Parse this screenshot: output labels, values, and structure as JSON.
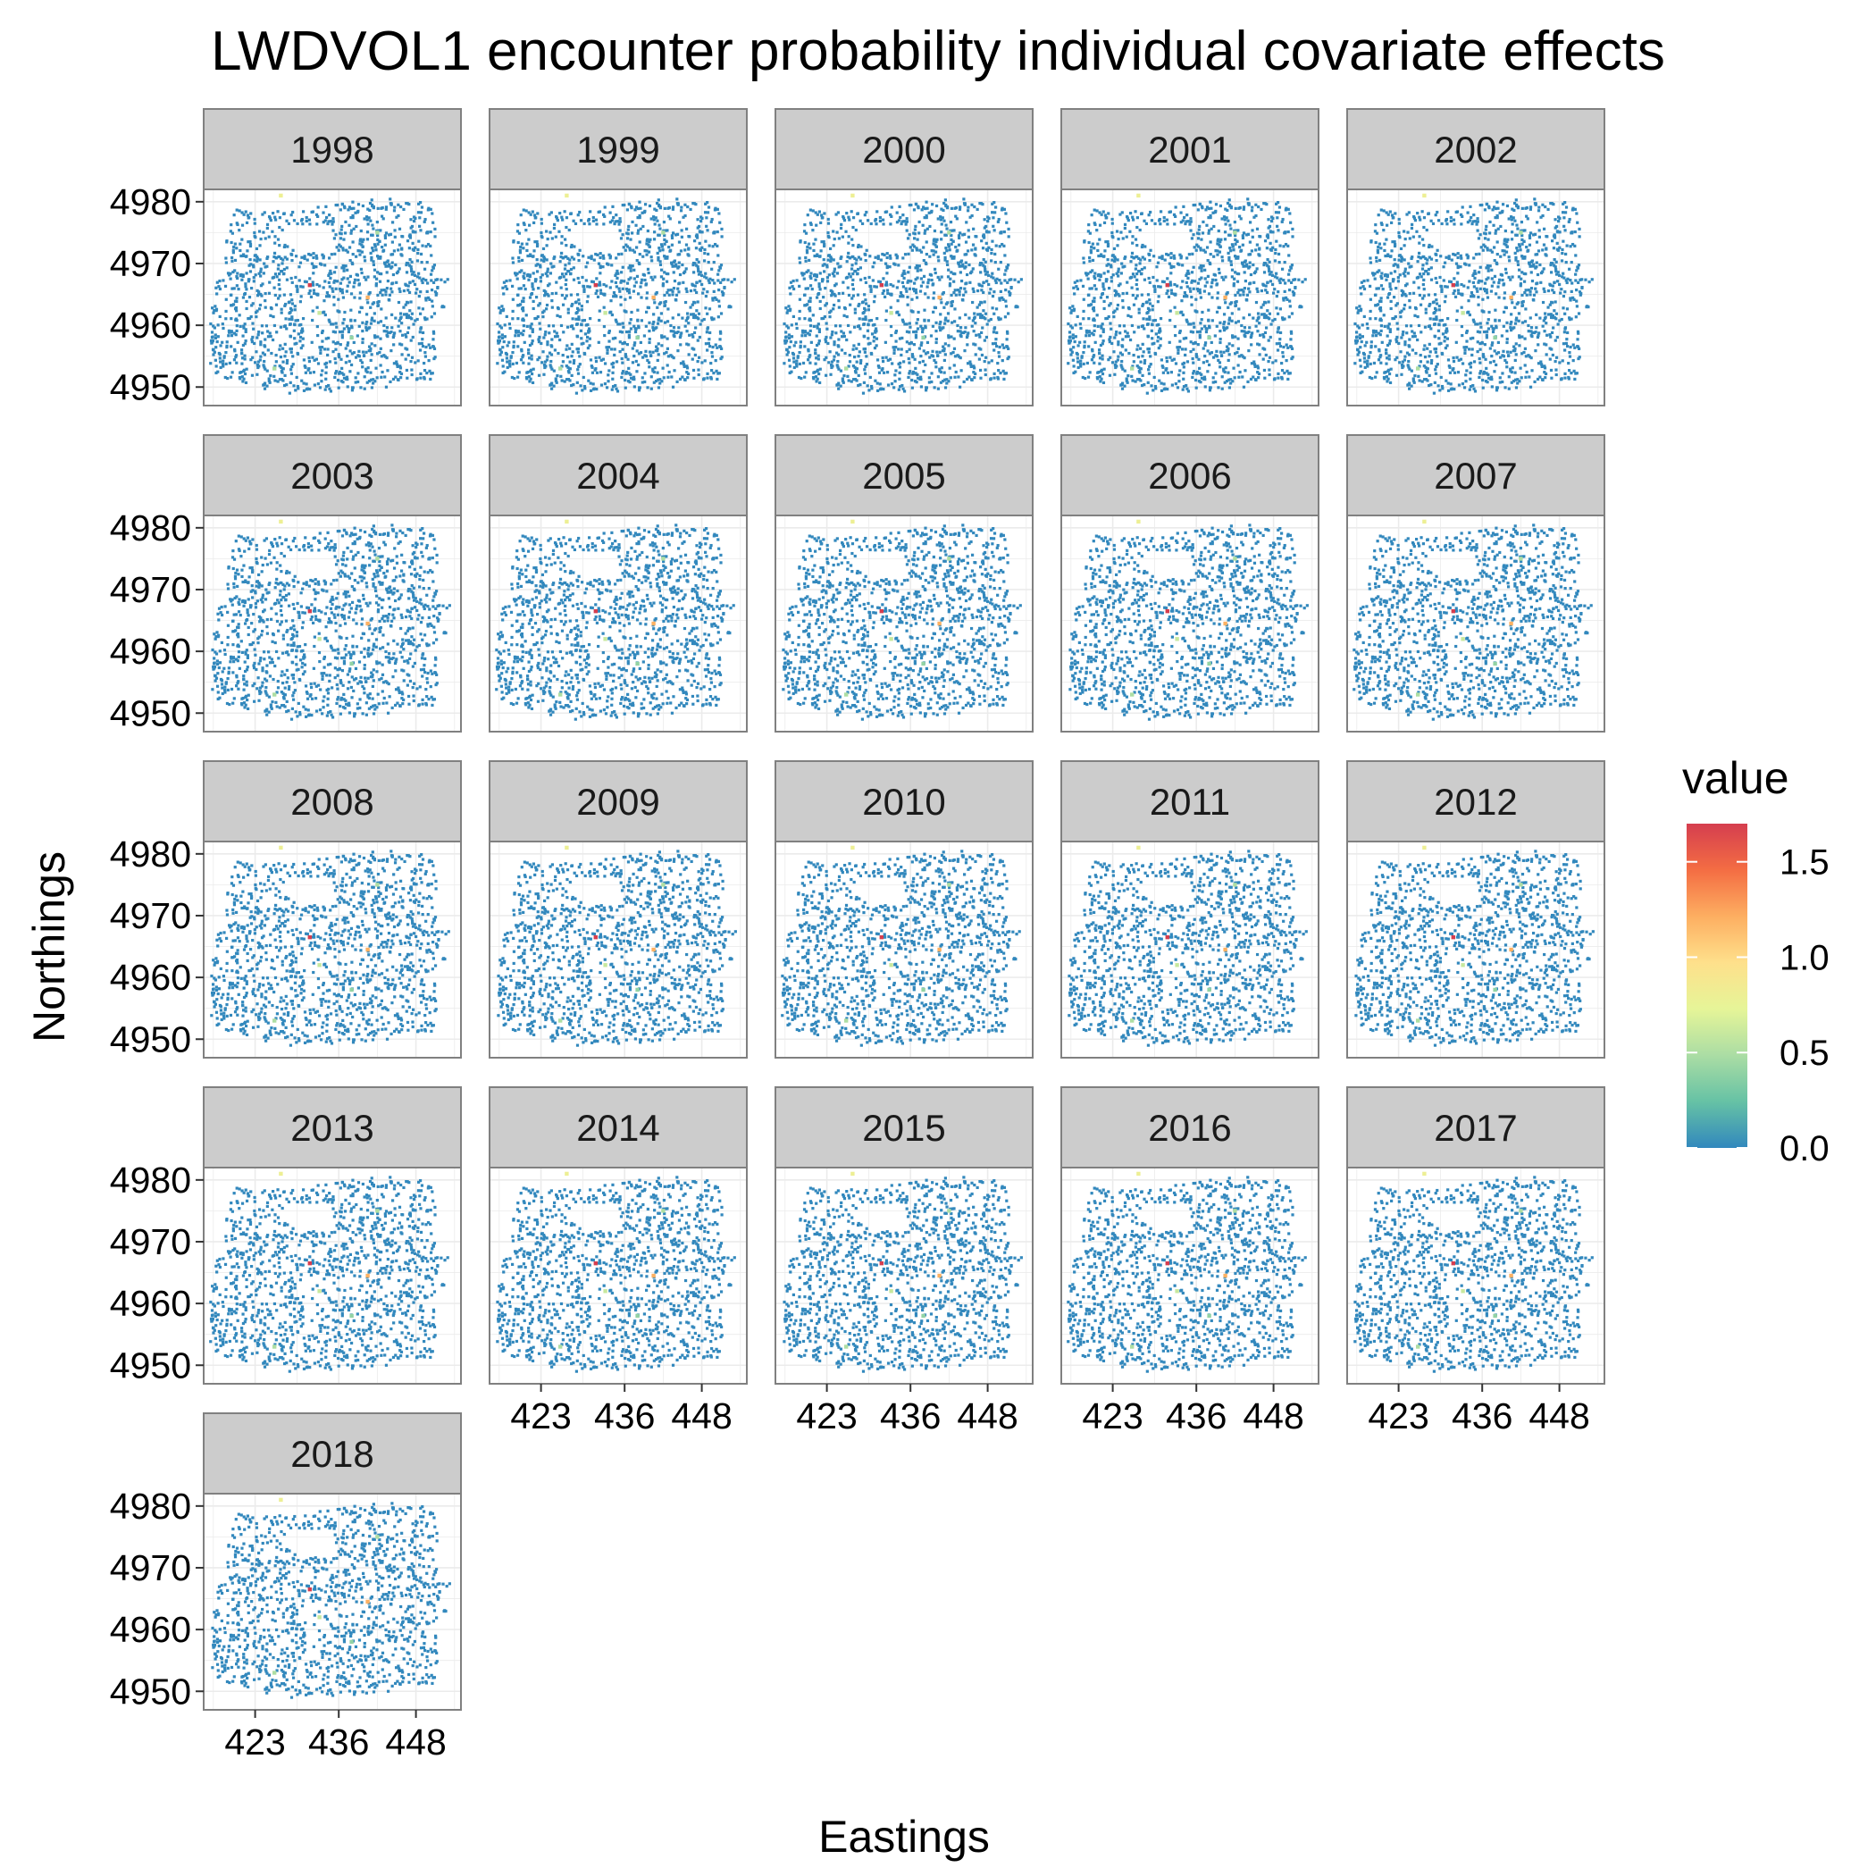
{
  "chart_data": {
    "type": "scatter",
    "title": "LWDVOL1 encounter probability individual covariate effects",
    "xlabel": "Eastings",
    "ylabel": "Northings",
    "facet_variable": "year",
    "panels": [
      "1998",
      "1999",
      "2000",
      "2001",
      "2002",
      "2003",
      "2004",
      "2005",
      "2006",
      "2007",
      "2008",
      "2009",
      "2010",
      "2011",
      "2012",
      "2013",
      "2014",
      "2015",
      "2016",
      "2017",
      "2018"
    ],
    "x_ticks": [
      423,
      436,
      448
    ],
    "y_ticks": [
      4950,
      4960,
      4970,
      4980
    ],
    "xlim": [
      415,
      455
    ],
    "ylim": [
      4947,
      4982
    ],
    "grid": true,
    "point_color_default": "#3288bd",
    "colorbar": {
      "title": "value",
      "ticks": [
        0.0,
        0.5,
        1.0,
        1.5
      ],
      "tick_labels": [
        "0.0",
        "0.5",
        "1.0",
        "1.5"
      ],
      "range": [
        0,
        1.7
      ],
      "palette": [
        "#3288bd",
        "#66c2a5",
        "#abdda4",
        "#e6f598",
        "#fee08b",
        "#fdae61",
        "#f46d43",
        "#d53e4f"
      ]
    },
    "highlight_points": [
      {
        "x": 431.5,
        "y": 4966.5,
        "value": 1.7
      },
      {
        "x": 440.5,
        "y": 4964.5,
        "value": 1.2
      },
      {
        "x": 433.0,
        "y": 4962.0,
        "value": 0.6
      },
      {
        "x": 438.0,
        "y": 4958.0,
        "value": 0.4
      },
      {
        "x": 427.0,
        "y": 4981.0,
        "value": 0.8
      },
      {
        "x": 442.0,
        "y": 4975.0,
        "value": 0.5
      },
      {
        "x": 426.0,
        "y": 4953.0,
        "value": 0.5
      }
    ]
  }
}
